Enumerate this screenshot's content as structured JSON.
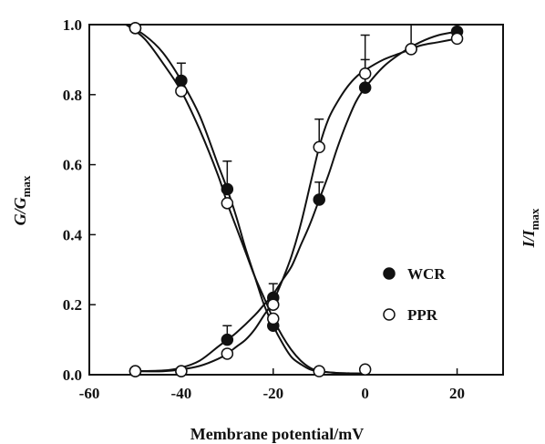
{
  "chart_data": {
    "type": "scatter",
    "title": "",
    "xlabel": "Membrane potential/mV",
    "ylabel_left": {
      "main": "G/G",
      "sub": "max"
    },
    "ylabel_right": {
      "main": "I/I",
      "sub": "max"
    },
    "xlim": [
      -60,
      30
    ],
    "ylim": [
      0,
      1.0
    ],
    "xticks": [
      -60,
      -40,
      -20,
      0,
      20
    ],
    "yticks": [
      0.0,
      0.2,
      0.4,
      0.6,
      0.8,
      1.0
    ],
    "ytick_labels": [
      "0.0",
      "0.2",
      "0.4",
      "0.6",
      "0.8",
      "1.0"
    ],
    "grid": false,
    "legend_position": "center-right",
    "series": [
      {
        "name": "WCR",
        "marker": "filled-circle",
        "color": "#111111",
        "groups": [
          {
            "id": "inactivation",
            "x": [
              -50,
              -40,
              -30,
              -20
            ],
            "y": [
              0.99,
              0.84,
              0.53,
              0.14
            ],
            "err": [
              0,
              0.05,
              0.08,
              0
            ],
            "fit": [
              [
                -52,
                1.0
              ],
              [
                -48,
                0.97
              ],
              [
                -44,
                0.92
              ],
              [
                -40,
                0.84
              ],
              [
                -36,
                0.74
              ],
              [
                -32,
                0.6
              ],
              [
                -30,
                0.53
              ],
              [
                -28,
                0.45
              ],
              [
                -26,
                0.36
              ],
              [
                -24,
                0.28
              ],
              [
                -22,
                0.2
              ],
              [
                -20,
                0.14
              ],
              [
                -18,
                0.09
              ],
              [
                -16,
                0.05
              ],
              [
                -14,
                0.03
              ],
              [
                -12,
                0.015
              ],
              [
                -10,
                0.01
              ],
              [
                -6,
                0.005
              ],
              [
                0,
                0.003
              ]
            ]
          },
          {
            "id": "activation",
            "x": [
              -50,
              -40,
              -30,
              -20,
              -10,
              0,
              10,
              20
            ],
            "y": [
              0.01,
              0.01,
              0.1,
              0.22,
              0.5,
              0.82,
              0.93,
              0.98
            ],
            "err": [
              0,
              0,
              0.04,
              0.04,
              0.05,
              0.08,
              0.07,
              0.02
            ],
            "fit": [
              [
                -50,
                0.01
              ],
              [
                -44,
                0.012
              ],
              [
                -40,
                0.02
              ],
              [
                -36,
                0.04
              ],
              [
                -32,
                0.08
              ],
              [
                -30,
                0.1
              ],
              [
                -28,
                0.12
              ],
              [
                -24,
                0.17
              ],
              [
                -22,
                0.2
              ],
              [
                -20,
                0.23
              ],
              [
                -18,
                0.27
              ],
              [
                -16,
                0.31
              ],
              [
                -14,
                0.37
              ],
              [
                -12,
                0.43
              ],
              [
                -10,
                0.5
              ],
              [
                -8,
                0.57
              ],
              [
                -6,
                0.65
              ],
              [
                -4,
                0.72
              ],
              [
                -2,
                0.78
              ],
              [
                0,
                0.82
              ],
              [
                4,
                0.88
              ],
              [
                8,
                0.92
              ],
              [
                12,
                0.95
              ],
              [
                16,
                0.97
              ],
              [
                20,
                0.98
              ]
            ]
          }
        ]
      },
      {
        "name": "PPR",
        "marker": "open-circle",
        "color": "#111111",
        "groups": [
          {
            "id": "inactivation",
            "x": [
              -50,
              -40,
              -30,
              -20,
              -10,
              0
            ],
            "y": [
              0.99,
              0.81,
              0.49,
              0.16,
              0.01,
              0.015
            ],
            "fit": [
              [
                -52,
                1.0
              ],
              [
                -48,
                0.96
              ],
              [
                -44,
                0.89
              ],
              [
                -40,
                0.81
              ],
              [
                -36,
                0.7
              ],
              [
                -32,
                0.57
              ],
              [
                -30,
                0.49
              ],
              [
                -28,
                0.42
              ],
              [
                -26,
                0.35
              ],
              [
                -24,
                0.28
              ],
              [
                -22,
                0.22
              ],
              [
                -20,
                0.16
              ],
              [
                -18,
                0.11
              ],
              [
                -16,
                0.07
              ],
              [
                -14,
                0.04
              ],
              [
                -12,
                0.02
              ],
              [
                -10,
                0.01
              ],
              [
                -6,
                0.005
              ],
              [
                0,
                0.003
              ]
            ]
          },
          {
            "id": "activation",
            "x": [
              -50,
              -40,
              -30,
              -20,
              -10,
              0,
              10,
              20
            ],
            "y": [
              0.01,
              0.01,
              0.06,
              0.2,
              0.65,
              0.86,
              0.93,
              0.96
            ],
            "err": [
              0,
              0,
              0,
              0.03,
              0.08,
              0.11,
              0,
              0
            ],
            "fit": [
              [
                -50,
                0.01
              ],
              [
                -44,
                0.01
              ],
              [
                -40,
                0.015
              ],
              [
                -36,
                0.025
              ],
              [
                -32,
                0.045
              ],
              [
                -30,
                0.06
              ],
              [
                -28,
                0.08
              ],
              [
                -26,
                0.1
              ],
              [
                -24,
                0.13
              ],
              [
                -22,
                0.17
              ],
              [
                -20,
                0.21
              ],
              [
                -18,
                0.27
              ],
              [
                -16,
                0.34
              ],
              [
                -14,
                0.43
              ],
              [
                -12,
                0.54
              ],
              [
                -10,
                0.65
              ],
              [
                -8,
                0.73
              ],
              [
                -6,
                0.78
              ],
              [
                -4,
                0.82
              ],
              [
                -2,
                0.85
              ],
              [
                0,
                0.87
              ],
              [
                4,
                0.9
              ],
              [
                8,
                0.92
              ],
              [
                12,
                0.94
              ],
              [
                16,
                0.95
              ],
              [
                20,
                0.96
              ]
            ]
          }
        ]
      }
    ]
  }
}
